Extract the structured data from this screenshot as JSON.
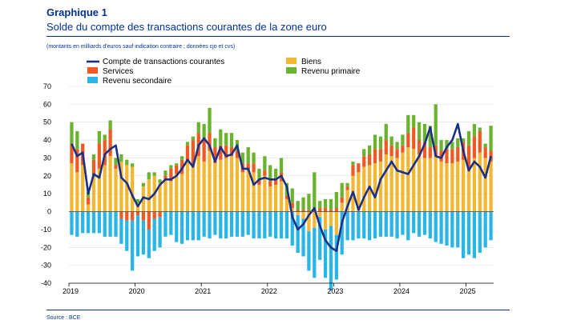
{
  "header": {
    "title": "Graphique 1",
    "subtitle": "Solde du compte des transactions courantes de la zone euro",
    "note": "(montants en milliards d'euros sauf indication contraire ; données cjo et cvs)"
  },
  "footer": {
    "source": "Source : BCE"
  },
  "chart_data": {
    "type": "bar",
    "stacked": true,
    "title": "Solde du compte des transactions courantes de la zone euro",
    "ylim": [
      -40,
      70
    ],
    "yticks": [
      -40,
      -30,
      -20,
      -10,
      0,
      10,
      20,
      30,
      40,
      50,
      60,
      70
    ],
    "xticks": [
      "2019",
      "2020",
      "2021",
      "2022",
      "2023",
      "2024",
      "2025"
    ],
    "x_start": "2019-01",
    "months": 77,
    "colors": {
      "biens": "#F5B731",
      "services": "#F05A22",
      "revenu_primaire": "#6AB42D",
      "revenu_secondaire": "#29B5E8",
      "compte": "#1A2F86"
    },
    "legend": {
      "compte": "Compte de transactions courantes",
      "biens": "Biens",
      "services": "Services",
      "revenu_primaire": "Revenu primaire",
      "revenu_secondaire": "Revenu secondaire"
    },
    "series": [
      {
        "key": "biens",
        "name": "Biens",
        "values": [
          27,
          22,
          26,
          4,
          20,
          24,
          26,
          31,
          24,
          28,
          26,
          25,
          5,
          14,
          18,
          20,
          16,
          18,
          17,
          21,
          21,
          28,
          26,
          31,
          28,
          34,
          27,
          29,
          30,
          31,
          30,
          22,
          23,
          22,
          15,
          20,
          14,
          15,
          17,
          7,
          2,
          -2,
          -4,
          -11,
          -9,
          -3,
          -10,
          -8,
          -13,
          5,
          12,
          20,
          22,
          25,
          26,
          27,
          28,
          32,
          31,
          30,
          33,
          36,
          35,
          32,
          30,
          30,
          31,
          28,
          27,
          27,
          28,
          29,
          24,
          30,
          33,
          30,
          28
        ]
      },
      {
        "key": "services",
        "name": "Services",
        "values": [
          11,
          13,
          12,
          4,
          9,
          14,
          14,
          15,
          2,
          -4,
          -5,
          -5,
          -2,
          -5,
          -10,
          -4,
          -3,
          2,
          7,
          5,
          8,
          9,
          14,
          13,
          13,
          10,
          9,
          8,
          7,
          5,
          4,
          5,
          4,
          5,
          3,
          3,
          3,
          3,
          5,
          2,
          3,
          1,
          1,
          1,
          1,
          2,
          2,
          1,
          2,
          3,
          2,
          6,
          5,
          6,
          6,
          8,
          7,
          8,
          6,
          5,
          4,
          8,
          12,
          8,
          9,
          6,
          6,
          6,
          8,
          8,
          8,
          10,
          13,
          12,
          12,
          6,
          6
        ]
      },
      {
        "key": "revenu_primaire",
        "name": "Revenu primaire",
        "values": [
          12,
          10,
          0,
          3,
          3,
          7,
          3,
          5,
          4,
          4,
          3,
          2,
          2,
          2,
          4,
          2,
          2,
          3,
          2,
          1,
          2,
          2,
          2,
          6,
          8,
          14,
          5,
          9,
          7,
          8,
          6,
          6,
          9,
          6,
          6,
          8,
          9,
          6,
          8,
          7,
          8,
          5,
          7,
          9,
          21,
          4,
          5,
          6,
          9,
          8,
          2,
          2,
          0,
          4,
          5,
          8,
          7,
          9,
          5,
          4,
          6,
          10,
          7,
          10,
          10,
          12,
          23,
          6,
          5,
          4,
          5,
          2,
          8,
          7,
          2,
          2,
          14
        ]
      },
      {
        "key": "revenu_secondaire",
        "name": "Revenu secondaire",
        "values": [
          -13,
          -14,
          -12,
          -12,
          -12,
          -12,
          -14,
          -14,
          -14,
          -14,
          -17,
          -28,
          -23,
          -19,
          -16,
          -18,
          -17,
          -14,
          -13,
          -17,
          -18,
          -16,
          -16,
          -16,
          -14,
          -15,
          -13,
          -15,
          -15,
          -14,
          -14,
          -14,
          -13,
          -15,
          -15,
          -15,
          -14,
          -15,
          -15,
          -15,
          -19,
          -21,
          -21,
          -22,
          -28,
          -24,
          -27,
          -36,
          -25,
          -24,
          -16,
          -16,
          -15,
          -15,
          -16,
          -15,
          -14,
          -14,
          -14,
          -15,
          -13,
          -16,
          -12,
          -14,
          -13,
          -15,
          -17,
          -18,
          -19,
          -20,
          -20,
          -26,
          -24,
          -26,
          -23,
          -20,
          -16
        ]
      },
      {
        "key": "compte",
        "name": "Compte de transactions courantes",
        "type": "line",
        "values": [
          38,
          31,
          33,
          10,
          21,
          19,
          32,
          35,
          37,
          19,
          16,
          9,
          3,
          8,
          7,
          10,
          15,
          18,
          18,
          20,
          24,
          29,
          25,
          37,
          41,
          37,
          28,
          36,
          31,
          32,
          37,
          24,
          24,
          15,
          18,
          19,
          18,
          18,
          20,
          14,
          -3,
          -10,
          -7,
          -2,
          2,
          -8,
          -16,
          -20,
          -22,
          -6,
          3,
          11,
          1,
          8,
          14,
          8,
          18,
          23,
          28,
          23,
          22,
          21,
          26,
          31,
          38,
          47,
          31,
          30,
          36,
          40,
          49,
          34,
          23,
          28,
          25,
          19,
          31
        ]
      }
    ]
  }
}
